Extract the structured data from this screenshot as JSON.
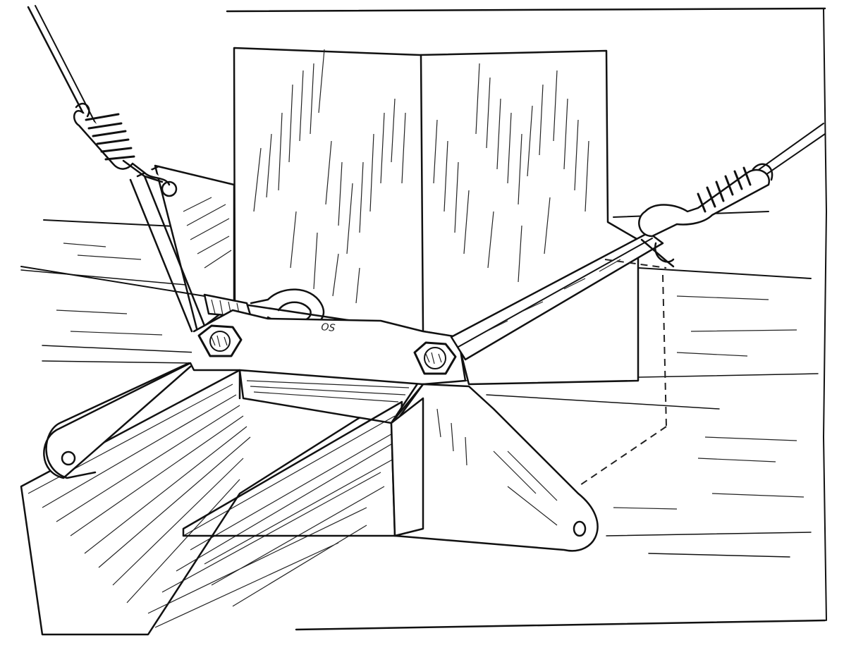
{
  "figure": {
    "parts": [
      {
        "name": "post"
      },
      {
        "name": "beam"
      },
      {
        "name": "base-plate"
      },
      {
        "name": "vertical-plate"
      },
      {
        "name": "left-upper-bracket"
      },
      {
        "name": "bolt-left"
      },
      {
        "name": "bolt-right"
      },
      {
        "name": "turnbuckle-rod"
      },
      {
        "name": "wire-upper-left"
      },
      {
        "name": "wire-middle-left"
      },
      {
        "name": "wire-right"
      },
      {
        "name": "thimble-upper-left"
      },
      {
        "name": "thimble-right"
      },
      {
        "name": "thimble-middle"
      }
    ],
    "plate_marking": "OS",
    "ink_color": "#111111",
    "background_color": "#ffffff"
  }
}
